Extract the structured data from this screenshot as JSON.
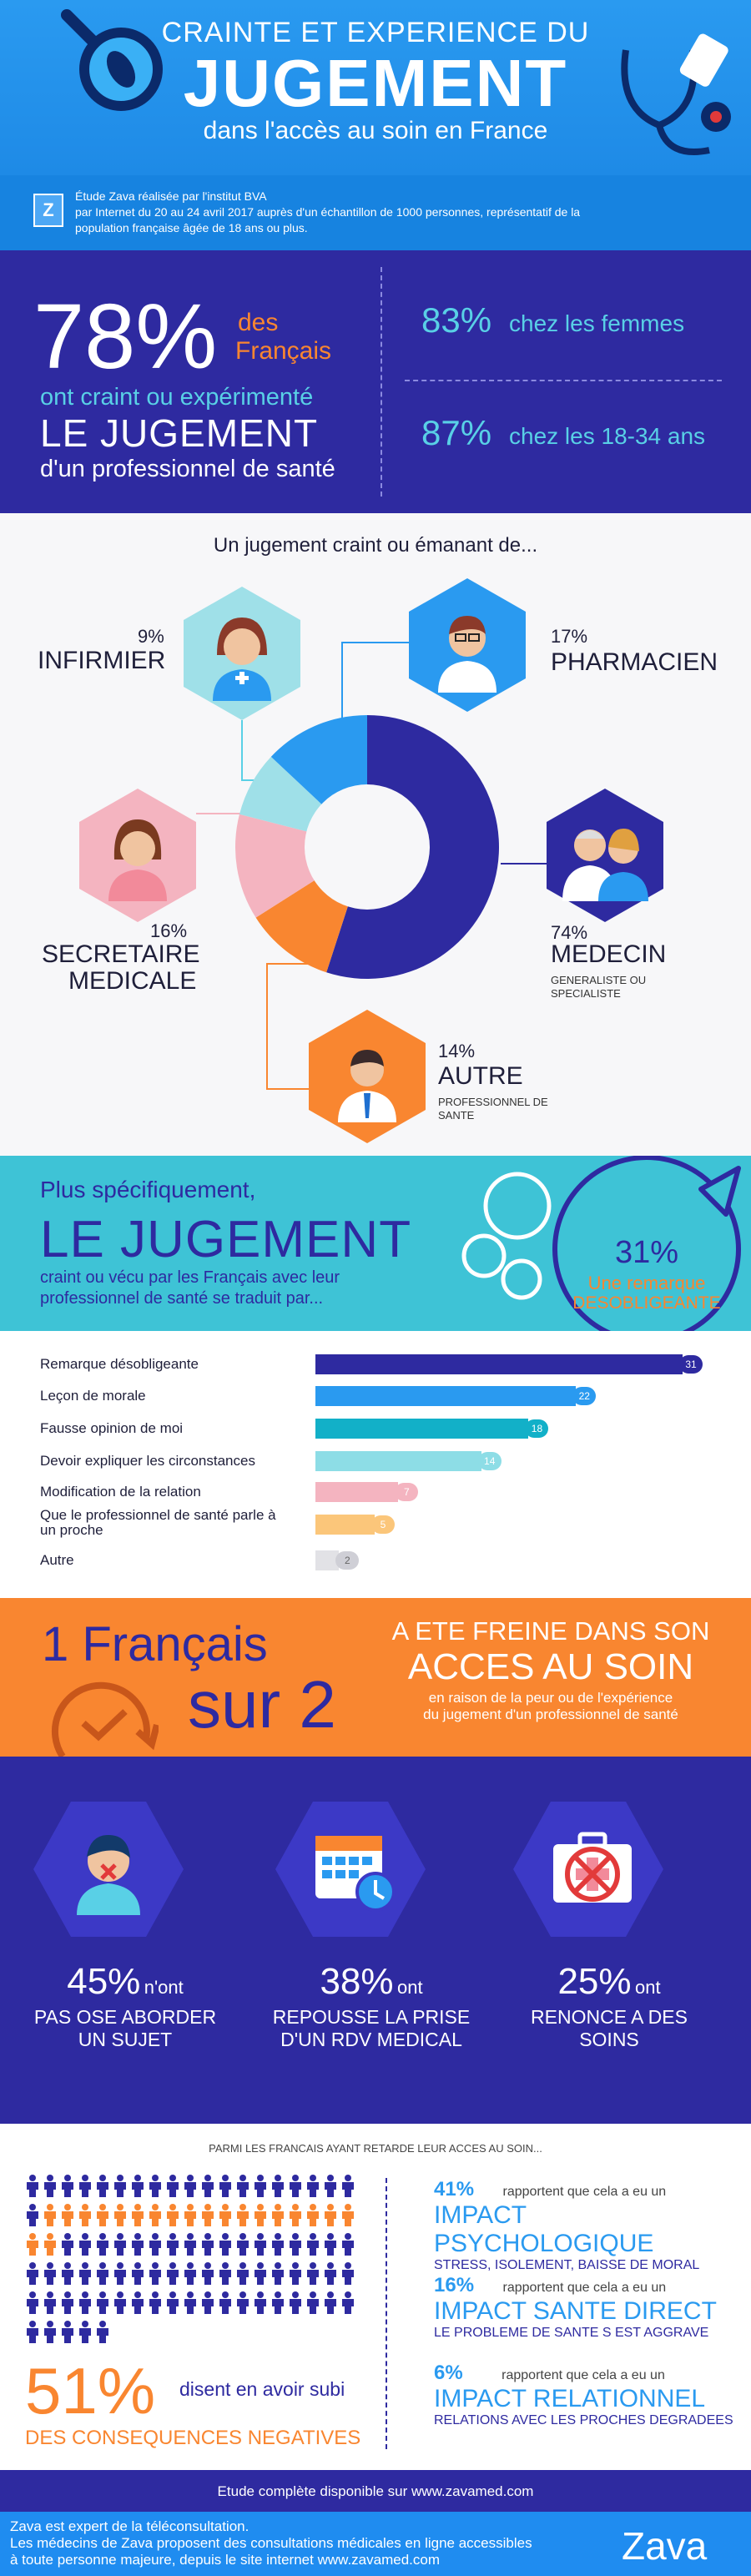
{
  "header": {
    "line1": "CRAINTE ET EXPERIENCE DU",
    "line2": "JUGEMENT",
    "line3": "dans l'accès au soin en France"
  },
  "study": {
    "logo": "Z",
    "line1": "Étude Zava réalisée par l'institut BVA",
    "line2": "par Internet du 20 au 24 avril 2017 auprès d'un échantillon de 1000 personnes, représentatif de la",
    "line3": "population française âgée de 18 ans ou plus."
  },
  "stats": {
    "main_pct": "78%",
    "main_des": "des",
    "main_francais": "Français",
    "main_line1": "ont craint ou expérimenté",
    "main_line2": "LE JUGEMENT",
    "main_line3": "d'un professionnel de santé",
    "women_pct": "83%",
    "women_label": "chez les femmes",
    "young_pct": "87%",
    "young_label": "chez les 18-34 ans"
  },
  "donut": {
    "title": "Un jugement craint ou émanant de...",
    "infirmier": {
      "pct": "9%",
      "label": "INFIRMIER"
    },
    "pharmacien": {
      "pct": "17%",
      "label": "PHARMACIEN"
    },
    "secretaire": {
      "pct": "16%",
      "label1": "SECRETAIRE",
      "label2": "MEDICALE"
    },
    "medecin": {
      "pct": "74%",
      "label": "MEDECIN",
      "sub1": "GENERALISTE OU",
      "sub2": "SPECIALISTE"
    },
    "autre": {
      "pct": "14%",
      "label": "AUTRE",
      "sub1": "PROFESSIONNEL DE",
      "sub2": "SANTE"
    },
    "colors": {
      "medecin": "#2e2aa0",
      "autre": "#f98630",
      "secretaire": "#f4b4c0",
      "infirmier": "#9fe0e8",
      "pharmacien": "#2a9af0"
    }
  },
  "specific": {
    "intro": "Plus spécifiquement,",
    "title": "LE JUGEMENT",
    "desc1": "craint ou vécu par les Français avec leur",
    "desc2": "professionnel de santé se traduit par...",
    "bubble_pct": "31%",
    "bubble_line1": "Une remarque",
    "bubble_line2": "DESOBLIGEANTE"
  },
  "chart_data": {
    "type": "bar",
    "categories": [
      "Remarque désobligeante",
      "Leçon de morale",
      "Fausse opinion de moi",
      "Devoir expliquer les circonstances",
      "Modification de la relation",
      "Que le professionnel de santé parle à un proche",
      "Autre"
    ],
    "values": [
      31,
      22,
      18,
      14,
      7,
      5,
      2
    ],
    "colors": [
      "#2e2aa0",
      "#2a9af0",
      "#12b0c8",
      "#8ddde6",
      "#f4b4c0",
      "#fbc67a",
      "#e2e2e6"
    ],
    "value_colors": [
      "#2e2aa0",
      "#2a9af0",
      "#12b0c8",
      "#8ddde6",
      "#f4b4c0",
      "#fbc67a",
      "#cfcfd6"
    ]
  },
  "half": {
    "line1": "1 Français",
    "line2": "sur 2",
    "right1": "A ETE FREINE DANS SON",
    "right2": "ACCES AU SOIN",
    "right3": "en raison de la peur ou de l'expérience",
    "right4": "du jugement d'un professionnel de santé"
  },
  "barriers": [
    {
      "pct": "45%",
      "word": "n'ont",
      "l1": "PAS OSE ABORDER",
      "l2": "UN SUJET"
    },
    {
      "pct": "38%",
      "word": "ont",
      "l1": "REPOUSSE LA PRISE",
      "l2": "D'UN RDV MEDICAL"
    },
    {
      "pct": "25%",
      "word": "ont",
      "l1": "RENONCE A DES",
      "l2": "SOINS"
    }
  ],
  "cons": {
    "title": "PARMI LES FRANCAIS AYANT RETARDE LEUR ACCES AU SOIN...",
    "big_pct": "51%",
    "big_txt": "disent en avoir subi",
    "big_sub": "DES CONSEQUENCES NEGATIVES",
    "people_value": 51,
    "items": [
      {
        "pct": "41%",
        "pre": "rapportent que cela a eu un",
        "title": "IMPACT PSYCHOLOGIQUE",
        "sub": "STRESS, ISOLEMENT, BAISSE DE MORAL"
      },
      {
        "pct": "16%",
        "pre": "rapportent que cela a eu un",
        "title": "IMPACT SANTE DIRECT",
        "sub": "LE PROBLEME DE SANTE S EST AGGRAVE"
      },
      {
        "pct": "6%",
        "pre": "rapportent que cela a eu un",
        "title": "IMPACT RELATIONNEL",
        "sub": "RELATIONS AVEC LES PROCHES DEGRADEES"
      }
    ]
  },
  "footer": {
    "study_link": "Etude complète disponible sur www.zavamed.com",
    "line1": "Zava est expert de la téléconsultation.",
    "line2": "Les médecins de Zava proposent des consultations médicales en ligne accessibles",
    "line3": "à toute personne majeure, depuis le site internet www.zavamed.com",
    "brand": "Zava"
  }
}
